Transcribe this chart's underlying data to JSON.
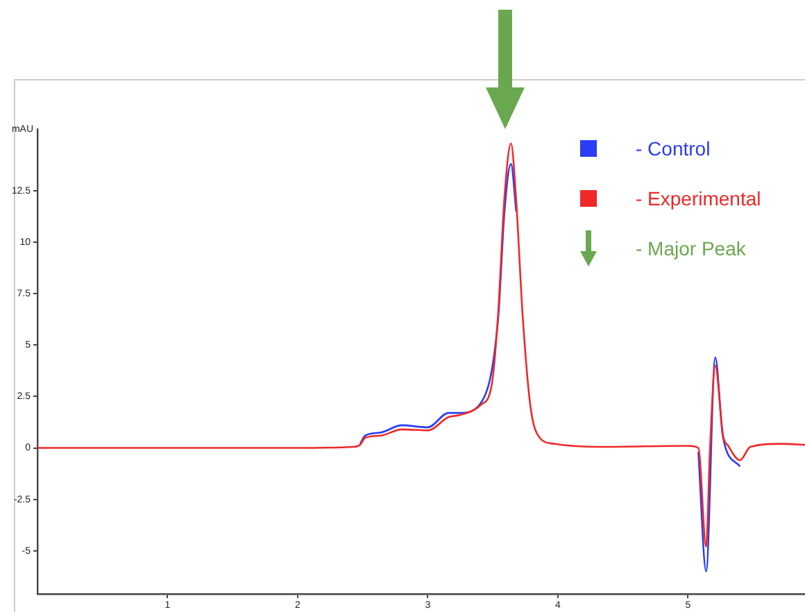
{
  "chart_data": {
    "type": "line",
    "ylabel": "mAU",
    "xlim": [
      0,
      5.9
    ],
    "xticks": [
      1,
      2,
      3,
      4,
      5
    ],
    "ylim": [
      -7.1,
      15.5
    ],
    "yticks": [
      -5,
      -2.5,
      0,
      2.5,
      5,
      7.5,
      10,
      12.5
    ],
    "grid": false,
    "legend": "top right",
    "marker": "none",
    "line_style": "solid",
    "annotations": [
      "- Major Peak"
    ],
    "series": [
      {
        "name": "- Control",
        "color": "#2a3cf5",
        "x": [
          2.48,
          2.52,
          2.64,
          2.8,
          3.0,
          3.16,
          3.25,
          3.41,
          3.54,
          3.59,
          3.64,
          3.68,
          3.73,
          4.4,
          5.08,
          5.14,
          5.21,
          5.27,
          5.4
        ],
        "values": [
          0.2,
          0.6,
          0.75,
          1.1,
          1.0,
          1.7,
          1.7,
          2.2,
          6.2,
          11.5,
          13.8,
          11.5,
          null,
          null,
          -0.2,
          -6.0,
          4.4,
          0.5,
          -0.9
        ]
      },
      {
        "name": "- Experimental",
        "color": "#f02828",
        "x": [
          0,
          1,
          2,
          2.43,
          2.48,
          2.52,
          2.64,
          2.8,
          3.0,
          3.16,
          3.25,
          3.41,
          3.49,
          3.54,
          3.59,
          3.64,
          3.68,
          3.73,
          3.79,
          3.86,
          3.97,
          4.32,
          5.0,
          5.08,
          5.14,
          5.17,
          5.21,
          5.27,
          5.31,
          5.4,
          5.48,
          5.72,
          5.9
        ],
        "values": [
          0,
          0,
          0,
          0.05,
          0.15,
          0.5,
          0.6,
          0.9,
          0.85,
          1.5,
          1.6,
          2.1,
          3.0,
          6.4,
          12.2,
          14.8,
          12.0,
          6.4,
          2.0,
          0.5,
          0.2,
          0.05,
          0.1,
          0,
          -4.8,
          0,
          4.0,
          0.6,
          0.1,
          -0.6,
          0.05,
          0.2,
          0.15
        ]
      }
    ]
  }
}
